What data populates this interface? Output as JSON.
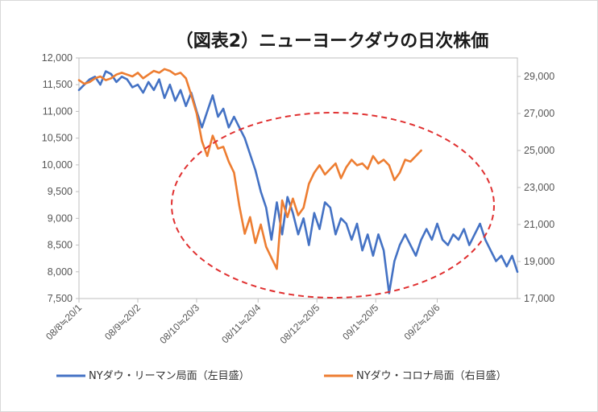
{
  "chart_data": {
    "type": "line",
    "title": "（図表2）ニューヨークダウの日次株価",
    "y_left": {
      "min": 7500,
      "max": 12000,
      "ticks": [
        "7,500",
        "8,000",
        "8,500",
        "9,000",
        "9,500",
        "10,000",
        "10,500",
        "11,000",
        "11,500",
        "12,000"
      ]
    },
    "y_right": {
      "min": 17000,
      "max": 30000,
      "ticks": [
        "17,000",
        "19,000",
        "21,000",
        "23,000",
        "25,000",
        "27,000",
        "29,000"
      ]
    },
    "x_index_range": [
      0,
      164
    ],
    "x_ticks": [
      {
        "label": "08/8≒20/1",
        "i": 0
      },
      {
        "label": "08/9≒20/2",
        "i": 22
      },
      {
        "label": "08/10≒20/3",
        "i": 44
      },
      {
        "label": "08/11≒20/4",
        "i": 67
      },
      {
        "label": "08/12≒20/5",
        "i": 89
      },
      {
        "label": "09/1≒20/5",
        "i": 111
      },
      {
        "label": "09/2≒20/6",
        "i": 134
      }
    ],
    "grid": false,
    "legend_position": "bottom",
    "series": [
      {
        "name": "NYダウ・リーマン局面（左目盛）",
        "axis": "left",
        "color": "#4472C4",
        "x": [
          0,
          2,
          4,
          6,
          8,
          10,
          12,
          14,
          16,
          18,
          20,
          22,
          24,
          26,
          28,
          30,
          32,
          34,
          36,
          38,
          40,
          42,
          44,
          46,
          48,
          50,
          52,
          54,
          56,
          58,
          60,
          62,
          64,
          66,
          68,
          70,
          72,
          74,
          76,
          78,
          80,
          82,
          84,
          86,
          88,
          90,
          92,
          94,
          96,
          98,
          100,
          102,
          104,
          106,
          108,
          110,
          112,
          114,
          116,
          118,
          120,
          122,
          124,
          126,
          128,
          130,
          132,
          134,
          136,
          138,
          140,
          142,
          144,
          146,
          148,
          150,
          152,
          154,
          156,
          158,
          160,
          162,
          164
        ],
        "values": [
          11400,
          11500,
          11600,
          11650,
          11500,
          11750,
          11700,
          11550,
          11650,
          11600,
          11450,
          11500,
          11350,
          11550,
          11400,
          11600,
          11250,
          11500,
          11200,
          11400,
          11100,
          11350,
          11000,
          10700,
          11000,
          11300,
          10900,
          11050,
          10700,
          10900,
          10700,
          10500,
          10200,
          9900,
          9500,
          9200,
          8600,
          9300,
          8700,
          9400,
          9100,
          8700,
          9000,
          8500,
          9100,
          8800,
          9300,
          9200,
          8700,
          9000,
          8900,
          8600,
          8900,
          8400,
          8700,
          8300,
          8700,
          8400,
          7600,
          8200,
          8500,
          8700,
          8500,
          8300,
          8600,
          8800,
          8600,
          8900,
          8600,
          8500,
          8700,
          8600,
          8800,
          8500,
          8700,
          8900,
          8600,
          8400,
          8200,
          8300,
          8100,
          8300,
          8000
        ]
      },
      {
        "name": "NYダウ・コロナ局面（右目盛）",
        "axis": "right",
        "color": "#ED7D31",
        "x": [
          0,
          2,
          4,
          6,
          8,
          10,
          12,
          14,
          16,
          18,
          20,
          22,
          24,
          26,
          28,
          30,
          32,
          34,
          36,
          38,
          40,
          42,
          44,
          46,
          48,
          50,
          52,
          54,
          56,
          58,
          60,
          62,
          64,
          66,
          68,
          70,
          72,
          74,
          76,
          78,
          80,
          82,
          84,
          86,
          88,
          90,
          92,
          94,
          96,
          98,
          100,
          102,
          104,
          106,
          108,
          110,
          112,
          114,
          116,
          118,
          120,
          122,
          124,
          126,
          128
        ],
        "values": [
          28800,
          28600,
          28700,
          28900,
          29000,
          28800,
          28900,
          29100,
          29200,
          29100,
          29000,
          29200,
          28900,
          29100,
          29300,
          29200,
          29400,
          29300,
          29100,
          29200,
          28900,
          28000,
          27000,
          25500,
          24700,
          25800,
          25100,
          25200,
          24400,
          23800,
          22000,
          20500,
          21400,
          20000,
          21000,
          19800,
          19200,
          18600,
          22300,
          21400,
          22400,
          21500,
          21900,
          23200,
          23800,
          24200,
          23700,
          24000,
          24300,
          23500,
          24100,
          24500,
          24200,
          24300,
          24000,
          24700,
          24300,
          24500,
          24200,
          23400,
          23800,
          24500,
          24400,
          24700,
          25000
        ]
      }
    ]
  }
}
